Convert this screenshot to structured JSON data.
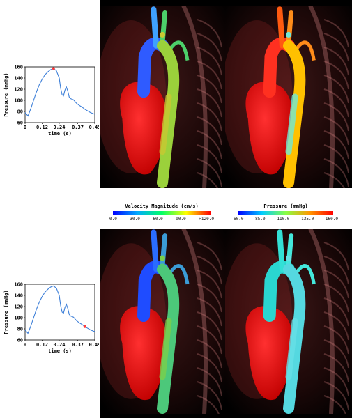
{
  "charts": [
    {
      "ylabel": "Pressure (mmHg)",
      "xlabel": "time (s)",
      "yticks": [
        "160",
        "140",
        "120",
        "100",
        "80",
        "60"
      ],
      "xticks": [
        "0",
        "0.12",
        "0.24",
        "0.37",
        "0.49"
      ],
      "marker_t": 0.2,
      "marker_color": "#ff3a3a"
    },
    {
      "ylabel": "Pressure (mmHg)",
      "xlabel": "time (s)",
      "yticks": [
        "160",
        "140",
        "120",
        "100",
        "80",
        "60"
      ],
      "xticks": [
        "0",
        "0.12",
        "0.24",
        "0.37",
        "0.49"
      ],
      "marker_t": 0.42,
      "marker_color": "#ff3a3a"
    }
  ],
  "chart_data": {
    "type": "line",
    "x": [
      0.0,
      0.02,
      0.04,
      0.06,
      0.08,
      0.1,
      0.12,
      0.14,
      0.16,
      0.18,
      0.2,
      0.22,
      0.24,
      0.25,
      0.26,
      0.27,
      0.28,
      0.29,
      0.3,
      0.31,
      0.32,
      0.34,
      0.36,
      0.38,
      0.4,
      0.42,
      0.44,
      0.46,
      0.48,
      0.49
    ],
    "y": [
      78,
      72,
      85,
      100,
      115,
      128,
      138,
      146,
      151,
      155,
      157,
      153,
      140,
      122,
      110,
      108,
      118,
      124,
      117,
      106,
      103,
      101,
      95,
      91,
      88,
      84,
      81,
      78,
      76,
      75
    ],
    "xlim": [
      0,
      0.49
    ],
    "ylim": [
      60,
      160
    ]
  },
  "colorbars": [
    {
      "title": "Velocity Magnitude (cm/s)",
      "ticks": [
        "0.0",
        "30.0",
        "60.0",
        "90.0",
        ">120.0"
      ],
      "gradient": [
        "#0000ff",
        "#00aaff",
        "#00ff66",
        "#ffff00",
        "#ff0000"
      ]
    },
    {
      "title": "Pressure (mmHg)",
      "ticks": [
        "60.0",
        "85.0",
        "110.0",
        "135.0",
        "160.0"
      ],
      "gradient": [
        "#0000ff",
        "#00ccff",
        "#88ff44",
        "#ff9900",
        "#ff0000"
      ]
    }
  ],
  "renders": [
    {
      "name": "velocity-systole",
      "vessel": "velocity-mixed"
    },
    {
      "name": "pressure-systole",
      "vessel": "pressure-high"
    },
    {
      "name": "velocity-diastole",
      "vessel": "velocity-low"
    },
    {
      "name": "pressure-diastole",
      "vessel": "pressure-low"
    }
  ]
}
